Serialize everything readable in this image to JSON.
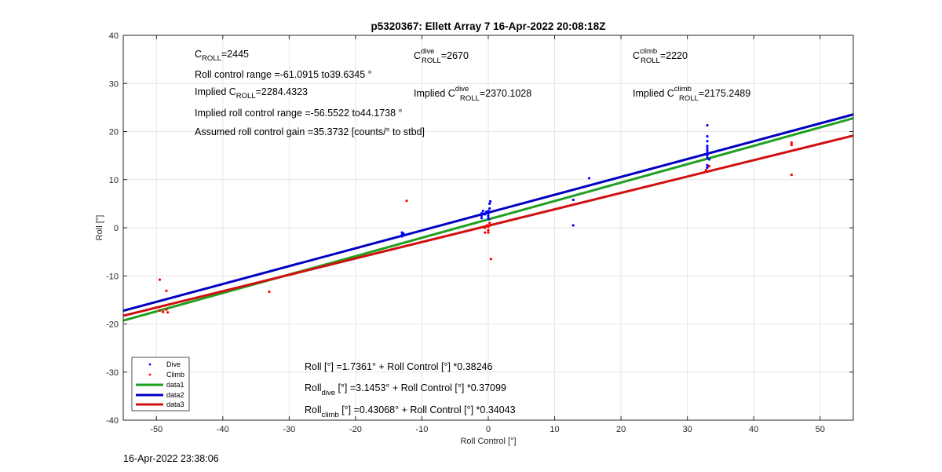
{
  "chart_data": {
    "type": "scatter",
    "title": "p5320367: Ellett Array 7 16-Apr-2022 20:08:18Z",
    "xlabel": "Roll Control [°]",
    "ylabel": "Roll [°]",
    "xlim": [
      -55,
      55
    ],
    "ylim": [
      -40,
      40
    ],
    "xticks": [
      -50,
      -40,
      -30,
      -20,
      -10,
      0,
      10,
      20,
      30,
      40,
      50
    ],
    "yticks": [
      -40,
      -30,
      -20,
      -10,
      0,
      10,
      20,
      30,
      40
    ],
    "grid": true,
    "legend_position": "bottom-left",
    "series": [
      {
        "name": "Dive",
        "kind": "points",
        "color": "#0000ff",
        "points": [
          [
            -13,
            -1
          ],
          [
            -13,
            -1.5
          ],
          [
            -13,
            -1.8
          ],
          [
            -12.8,
            -1.2
          ],
          [
            -1,
            3
          ],
          [
            -1,
            2.5
          ],
          [
            -1,
            2
          ],
          [
            -0.8,
            3.5
          ],
          [
            -0.5,
            2.8
          ],
          [
            -0.3,
            3.3
          ],
          [
            0,
            2.5
          ],
          [
            0,
            3
          ],
          [
            0,
            3.5
          ],
          [
            0,
            2
          ],
          [
            0.2,
            4
          ],
          [
            0.2,
            5
          ],
          [
            0.3,
            5.5
          ],
          [
            0.1,
            1.8
          ],
          [
            12.8,
            5.8
          ],
          [
            12.8,
            0.5
          ],
          [
            15.2,
            10.3
          ],
          [
            33,
            12.5
          ],
          [
            33,
            13
          ],
          [
            33,
            14.5
          ],
          [
            33,
            15
          ],
          [
            33,
            15.5
          ],
          [
            33,
            16
          ],
          [
            33,
            16.5
          ],
          [
            33,
            17
          ],
          [
            33,
            18
          ],
          [
            33,
            19
          ],
          [
            33,
            21.3
          ],
          [
            33.3,
            14.2
          ]
        ]
      },
      {
        "name": "Climb",
        "kind": "points",
        "color": "#ff0000",
        "points": [
          [
            -49.5,
            -10.8
          ],
          [
            -49.5,
            -17.2
          ],
          [
            -49,
            -17.5
          ],
          [
            -48.5,
            -13.1
          ],
          [
            -48.5,
            -17
          ],
          [
            -48.3,
            -17.6
          ],
          [
            -33,
            -13.3
          ],
          [
            -12.3,
            5.6
          ],
          [
            -0.5,
            0
          ],
          [
            -0.5,
            -1
          ],
          [
            -0.2,
            0.5
          ],
          [
            0,
            0.2
          ],
          [
            0,
            -0.5
          ],
          [
            0,
            -1
          ],
          [
            0.2,
            1
          ],
          [
            0.3,
            0.5
          ],
          [
            0.4,
            -6.5
          ],
          [
            32.8,
            12
          ],
          [
            33.3,
            12.8
          ],
          [
            45.7,
            17.7
          ],
          [
            45.7,
            17.2
          ],
          [
            45.7,
            11
          ]
        ]
      },
      {
        "name": "data1",
        "kind": "line",
        "color": "#20a020",
        "intercept": 1.7361,
        "slope": 0.38246
      },
      {
        "name": "data2",
        "kind": "line",
        "color": "#0000c0",
        "intercept": 3.1453,
        "slope": 0.37099
      },
      {
        "name": "data3",
        "kind": "line",
        "color": "#d01010",
        "intercept": 0.43068,
        "slope": 0.34043
      }
    ]
  },
  "annotations": {
    "c_roll_main": "C",
    "c_roll_sub": "ROLL",
    "c_roll_val": "=2445",
    "c_dive_main": "C",
    "c_dive_sup": "dive",
    "c_dive_sub": "ROLL",
    "c_dive_val": "=2670",
    "c_climb_main": "C",
    "c_climb_sup": "climb",
    "c_climb_sub": "ROLL",
    "c_climb_val": "=2220",
    "range": "Roll control range =-61.0915 to39.6345 °",
    "implied_prefix": "Implied C",
    "implied_sub": "ROLL",
    "implied_val": "=2284.4323",
    "implied_dive_prefix": "Implied C",
    "implied_dive_sup": "dive",
    "implied_dive_sub": "ROLL",
    "implied_dive_val": "=2370.1028",
    "implied_climb_prefix": "Implied C",
    "implied_climb_sup": "climb",
    "implied_climb_sub": "ROLL",
    "implied_climb_val": "=2175.2489",
    "implied_range": "Implied roll control range =-56.5522 to44.1738 °",
    "gain": "Assumed roll control gain =35.3732 [counts/° to stbd]",
    "fit_all": "Roll [°] =1.7361° + Roll Control [°] *0.38246",
    "fit_dive_main": "Roll",
    "fit_dive_sub": "dive",
    "fit_dive_rest": " [°] =3.1453° + Roll Control [°] *0.37099",
    "fit_climb_main": "Roll",
    "fit_climb_sub": "climb",
    "fit_climb_rest": " [°] =0.43068° + Roll Control [°] *0.34043"
  },
  "timestamp": "16-Apr-2022 23:38:06"
}
